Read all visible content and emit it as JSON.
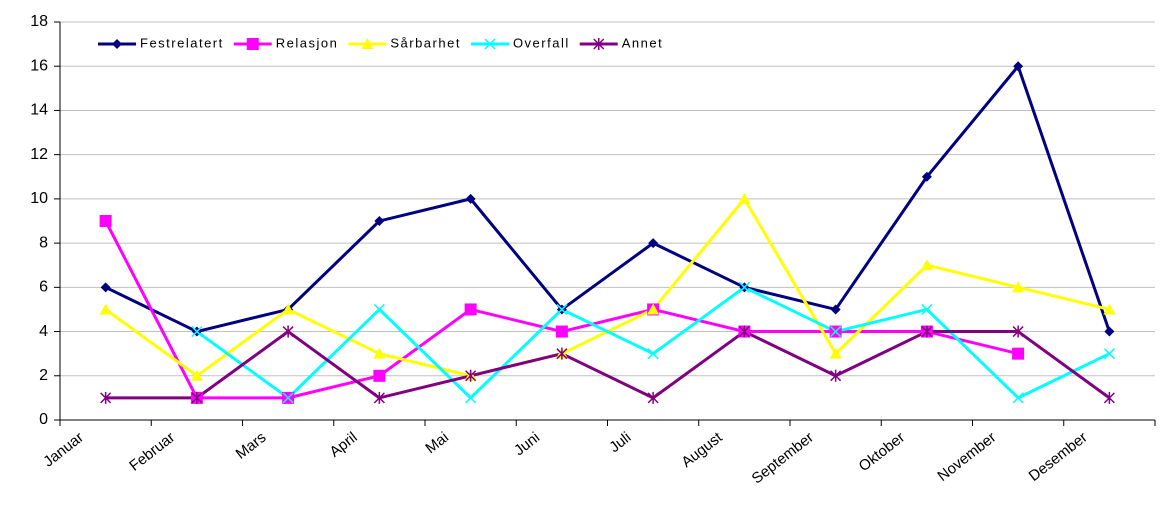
{
  "chart_data": {
    "type": "line",
    "categories": [
      "Januar",
      "Februar",
      "Mars",
      "April",
      "Mai",
      "Juni",
      "Juli",
      "August",
      "September",
      "Oktober",
      "November",
      "Desember"
    ],
    "series": [
      {
        "name": "Festrelatert",
        "color": "#000080",
        "marker": "diamond",
        "values": [
          6,
          4,
          5,
          9,
          10,
          5,
          8,
          6,
          5,
          11,
          16,
          4
        ]
      },
      {
        "name": "Relasjon",
        "color": "#ff00ff",
        "marker": "square",
        "values": [
          9,
          1,
          1,
          2,
          5,
          4,
          5,
          4,
          4,
          4,
          3,
          null
        ]
      },
      {
        "name": "Sårbarhet",
        "color": "#ffff00",
        "marker": "triangle",
        "values": [
          5,
          2,
          5,
          3,
          2,
          3,
          5,
          10,
          3,
          7,
          6,
          5
        ]
      },
      {
        "name": "Overfall",
        "color": "#00ffff",
        "marker": "x",
        "values": [
          null,
          4,
          1,
          5,
          1,
          5,
          3,
          6,
          4,
          5,
          1,
          3
        ]
      },
      {
        "name": "Annet",
        "color": "#800080",
        "marker": "star",
        "values": [
          1,
          1,
          4,
          1,
          2,
          3,
          1,
          4,
          2,
          4,
          4,
          1
        ]
      }
    ],
    "ylim": [
      0,
      18
    ],
    "yticks": [
      0,
      2,
      4,
      6,
      8,
      10,
      12,
      14,
      16,
      18
    ],
    "grid": true,
    "legend": "top-left"
  }
}
